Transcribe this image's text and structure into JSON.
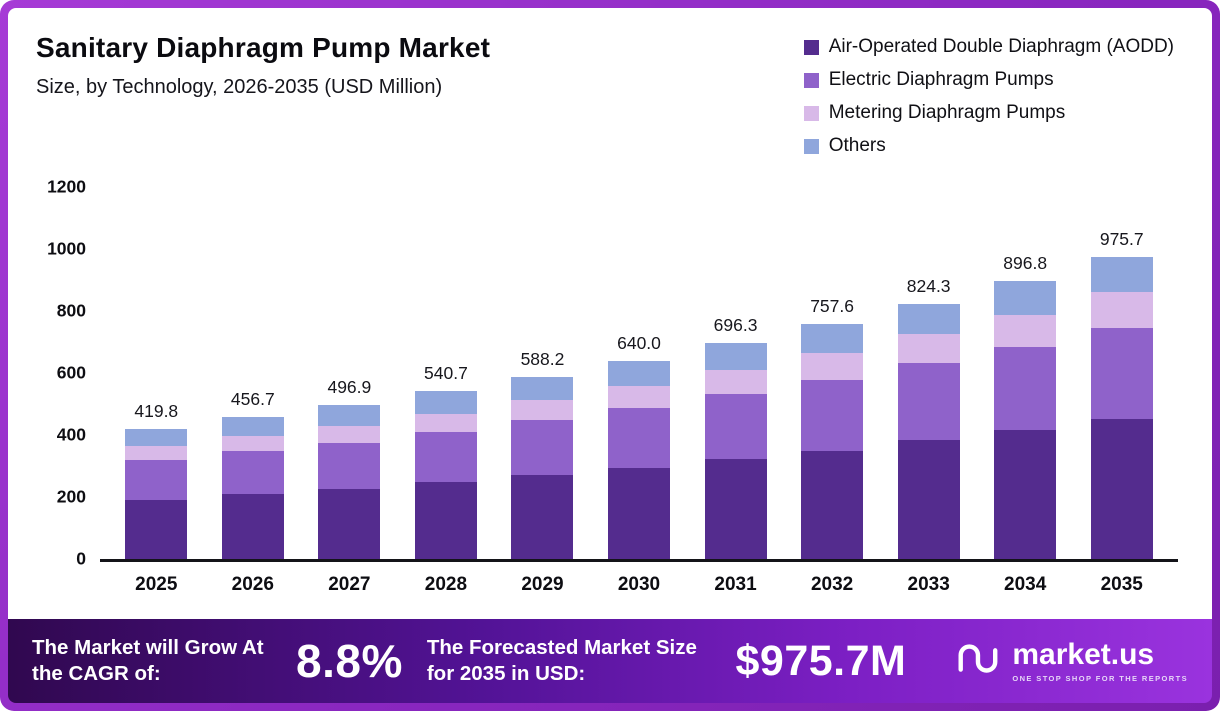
{
  "header": {
    "title": "Sanitary Diaphragm Pump Market",
    "subtitle": "Size, by Technology, 2026-2035 (USD Million)"
  },
  "chart_data": {
    "type": "bar",
    "stacked": true,
    "title": "Sanitary Diaphragm Pump Market Size, by Technology, 2026-2035 (USD Million)",
    "xlabel": "",
    "ylabel": "",
    "ylim": [
      0,
      1200
    ],
    "yticks": [
      0,
      200,
      400,
      600,
      800,
      1000,
      1200
    ],
    "grid": false,
    "legend_position": "top-right",
    "categories": [
      "2025",
      "2026",
      "2027",
      "2028",
      "2029",
      "2030",
      "2031",
      "2032",
      "2033",
      "2034",
      "2035"
    ],
    "totals": [
      "419.8",
      "456.7",
      "496.9",
      "540.7",
      "588.2",
      "640.0",
      "696.3",
      "757.6",
      "824.3",
      "896.8",
      "975.7"
    ],
    "series": [
      {
        "name": "Air-Operated Double Diaphragm (AODD)",
        "color": "#542c8e",
        "values": [
          190,
          210,
          225,
          248,
          270,
          295,
          322,
          350,
          383,
          415,
          453
        ]
      },
      {
        "name": "Electric Diaphragm Pumps",
        "color": "#8f62ca",
        "values": [
          130,
          140,
          150,
          162,
          178,
          193,
          210,
          228,
          248,
          270,
          292
        ]
      },
      {
        "name": "Metering Diaphragm Pumps",
        "color": "#d8b9e8",
        "values": [
          45,
          48,
          53,
          58,
          64,
          70,
          77,
          85,
          95,
          103,
          116
        ]
      },
      {
        "name": "Others",
        "color": "#8fa6dc",
        "values": [
          54.8,
          58.7,
          68.9,
          72.7,
          76.2,
          82.0,
          87.3,
          94.6,
          98.3,
          108.8,
          114.7
        ]
      }
    ]
  },
  "footer": {
    "cagr_label": "The Market will Grow At the CAGR of:",
    "cagr_value": "8.8%",
    "forecast_label": "The Forecasted Market Size for 2035 in USD:",
    "forecast_value": "$975.7M",
    "brand": "market.us",
    "brand_tagline": "ONE STOP SHOP FOR THE REPORTS"
  }
}
